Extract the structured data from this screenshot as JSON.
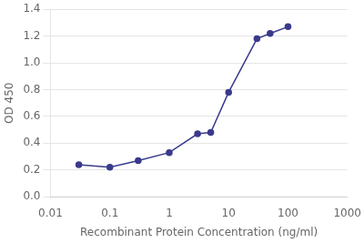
{
  "chart_data": {
    "type": "line",
    "xlabel": "Recombinant Protein Concentration (ng/ml)",
    "ylabel": "OD 450",
    "log": "x",
    "x": [
      0.03,
      0.1,
      0.3,
      1.0,
      3.0,
      5.0,
      10.0,
      30.0,
      50.0,
      100.0
    ],
    "series": [
      {
        "values": [
          0.24,
          0.22,
          0.27,
          0.33,
          0.47,
          0.48,
          0.78,
          1.18,
          1.22,
          1.27
        ],
        "color": "#3a3a8c",
        "marker": "circle"
      }
    ],
    "xlim": [
      0.01,
      1000
    ],
    "xticks": [
      0.01,
      0.1,
      1,
      10,
      100,
      1000
    ],
    "ylim": [
      0.0,
      1.4
    ],
    "yticks": [
      {
        "value": 0.0,
        "label": "0.0"
      },
      0.2,
      0.4,
      0.6,
      0.8,
      {
        "value": 1.0,
        "label": "1.0"
      },
      1.2,
      1.4
    ],
    "grid": "y"
  }
}
